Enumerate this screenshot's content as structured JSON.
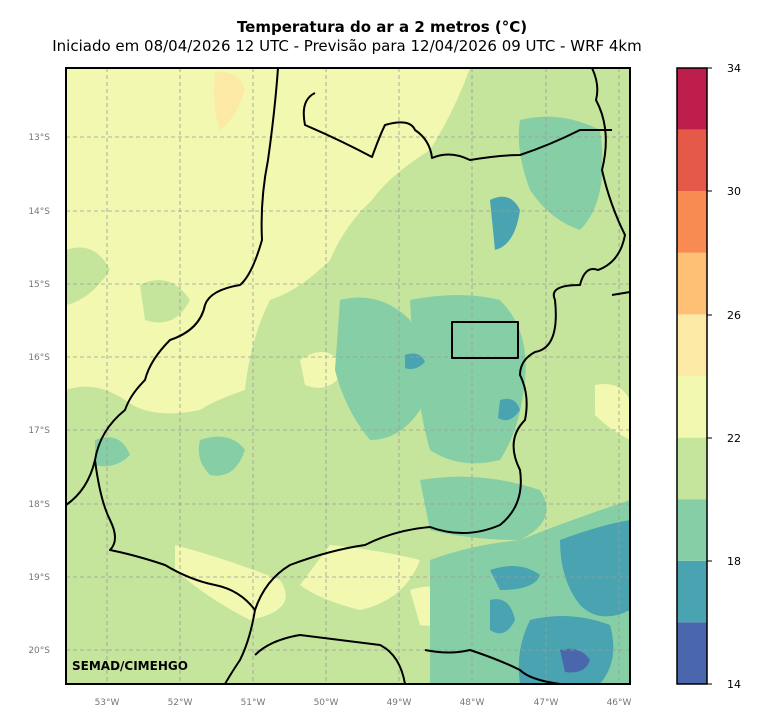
{
  "map": {
    "title": "Temperatura do ar a 2 metros (°C)",
    "subtitle": "Iniciado em 08/04/2026 12 UTC - Previsão para 12/04/2026 09 UTC - WRF 4km",
    "credit": "SEMAD/CIMEHGO",
    "lat_labels": [
      "13°S",
      "14°S",
      "15°S",
      "16°S",
      "17°S",
      "18°S",
      "19°S",
      "20°S"
    ],
    "lon_labels": [
      "53°W",
      "52°W",
      "51°W",
      "50°W",
      "49°W",
      "48°W",
      "47°W",
      "46°W"
    ]
  },
  "colorbar": {
    "tick_labels": [
      "34",
      "30",
      "26",
      "22",
      "18",
      "14"
    ],
    "bands": [
      {
        "from": 14,
        "to": 16,
        "color": "#4a66ad"
      },
      {
        "from": 16,
        "to": 18,
        "color": "#4aa3b1"
      },
      {
        "from": 18,
        "to": 20,
        "color": "#86cfa6"
      },
      {
        "from": 20,
        "to": 22,
        "color": "#c6e59c"
      },
      {
        "from": 22,
        "to": 24,
        "color": "#f2f8b0"
      },
      {
        "from": 24,
        "to": 26,
        "color": "#fde9a6"
      },
      {
        "from": 26,
        "to": 28,
        "color": "#fdc074"
      },
      {
        "from": 28,
        "to": 30,
        "color": "#f88b52"
      },
      {
        "from": 30,
        "to": 32,
        "color": "#e45948"
      },
      {
        "from": 32,
        "to": 34,
        "color": "#bd1e4b"
      }
    ]
  }
}
